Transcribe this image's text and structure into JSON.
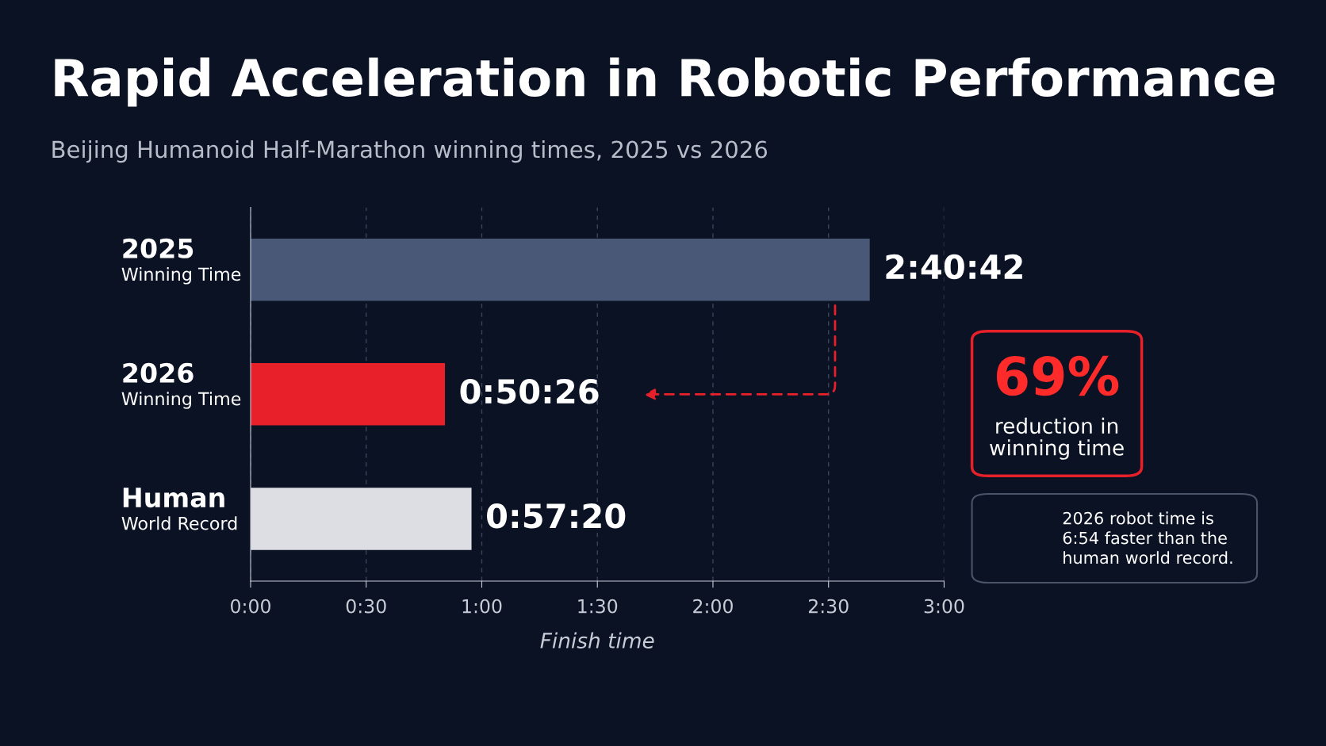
{
  "chart_data": {
    "type": "bar",
    "orientation": "horizontal",
    "title": "Rapid Acceleration in Robotic Performance",
    "subtitle": "Beijing Humanoid Half-Marathon winning times, 2025 vs 2026",
    "categories": [
      "2025\nWinning Time",
      "2026\nWinning Time",
      "Human\nWorld Record"
    ],
    "values": [
      2.6783,
      0.8406,
      0.9556
    ],
    "colors": [
      "#4a5878",
      "#e8202a",
      "#dcdee4"
    ],
    "value_labels": [
      "2:40:42",
      "0:50:26",
      "0:57:20"
    ],
    "xlabel": "Finish time",
    "xlim": [
      0,
      3
    ],
    "xticks": [
      {
        "value": 0,
        "label": "0:00"
      },
      {
        "value": 0.5,
        "label": "0:30"
      },
      {
        "value": 1,
        "label": "1:00"
      },
      {
        "value": 1.5,
        "label": "1:30"
      },
      {
        "value": 2,
        "label": "2:00"
      },
      {
        "value": 2.5,
        "label": "2:30"
      },
      {
        "value": 3,
        "label": "3:00"
      }
    ],
    "grid": "x",
    "annotations": [
      "69%",
      "reduction in\nwinning time",
      "2026 robot time is\n6:54 faster than the\nhuman world record."
    ]
  }
}
